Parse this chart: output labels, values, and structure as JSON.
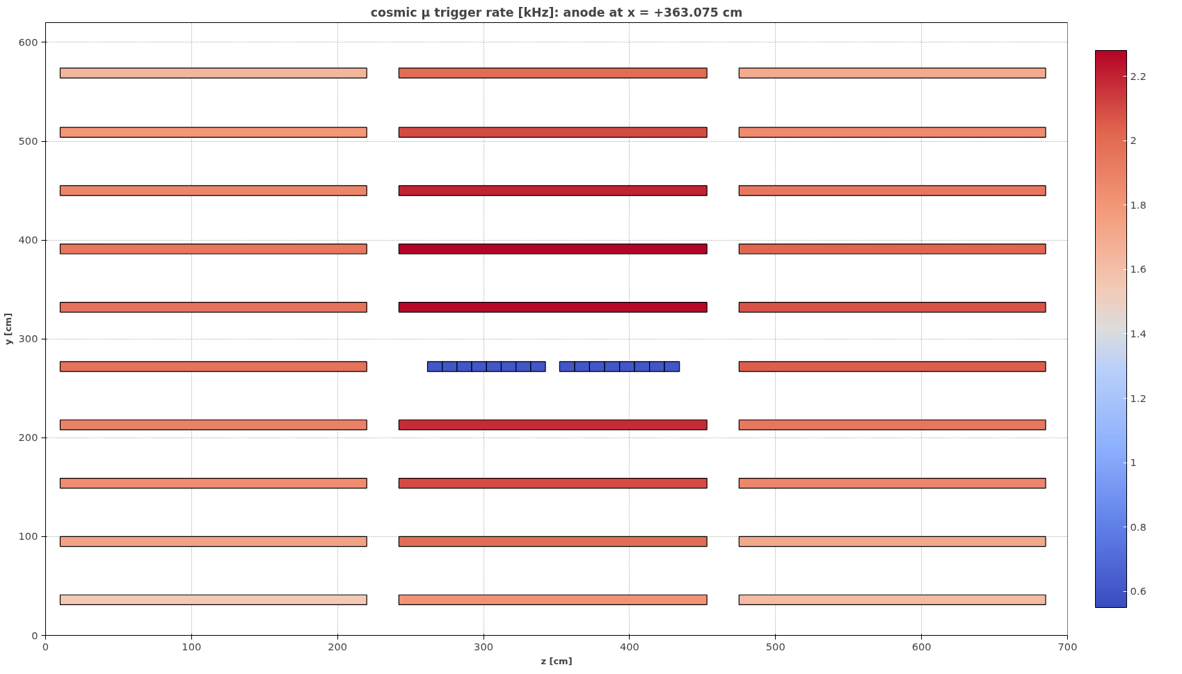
{
  "chart_data": {
    "type": "bar",
    "orientation": "horizontal",
    "title": "cosmic μ trigger rate [kHz]: anode at x = +363.075 cm",
    "xlabel": "z [cm]",
    "ylabel": "y [cm]",
    "xlim": [
      0,
      700
    ],
    "ylim": [
      0,
      620
    ],
    "xticks": [
      0,
      100,
      200,
      300,
      400,
      500,
      600,
      700
    ],
    "yticks": [
      0,
      100,
      200,
      300,
      400,
      500,
      600
    ],
    "clim": [
      0.55,
      2.28
    ],
    "cticks": [
      0.6,
      0.8,
      1.0,
      1.2,
      1.4,
      1.6,
      1.8,
      2.0,
      2.2
    ],
    "grid": true,
    "series": [
      {
        "x": [
          569,
          509,
          450,
          391,
          332,
          272,
          213,
          154,
          95,
          36
        ],
        "base": [
          10,
          10,
          10,
          10,
          10,
          10,
          10,
          10,
          10,
          10
        ],
        "values": [
          210,
          210,
          210,
          210,
          210,
          210,
          210,
          210,
          210,
          210
        ],
        "colors": [
          "#f3b59c",
          "#f39778",
          "#ec866a",
          "#e7775e",
          "#e5725b",
          "#e5725b",
          "#eb8267",
          "#ef8c70",
          "#f4a183",
          "#f2c9b4"
        ]
      },
      {
        "x": [
          569,
          509,
          450,
          391,
          332,
          213,
          154,
          95,
          36
        ],
        "base": [
          242,
          242,
          242,
          242,
          242,
          242,
          242,
          242,
          242
        ],
        "values": [
          211,
          211,
          211,
          211,
          211,
          211,
          211,
          211,
          211
        ],
        "colors": [
          "#e36c55",
          "#d44b44",
          "#c22334",
          "#b40426",
          "#b60828",
          "#c62c37",
          "#d44b44",
          "#e36c55",
          "#f19375"
        ]
      },
      {
        "x": [
          569,
          509,
          450,
          391,
          332,
          272,
          213,
          154,
          95,
          36
        ],
        "base": [
          475,
          475,
          475,
          475,
          475,
          475,
          475,
          475,
          475,
          475
        ],
        "values": [
          210,
          210,
          210,
          210,
          210,
          210,
          210,
          210,
          210,
          210
        ],
        "colors": [
          "#f3ab90",
          "#ef8c70",
          "#e7775e",
          "#e06650",
          "#d85347",
          "#dd5e4c",
          "#e7775e",
          "#ec866a",
          "#f3a78b",
          "#f3bba3"
        ]
      },
      {
        "x": [
          272
        ],
        "base": [
          261.6
        ],
        "values": [
          10.1
        ],
        "color": "#4256c8"
      },
      {
        "x": [
          272
        ],
        "base": [
          271.7
        ],
        "values": [
          10.1
        ],
        "color": "#4256c8"
      },
      {
        "x": [
          272
        ],
        "base": [
          281.8
        ],
        "values": [
          10.1
        ],
        "color": "#4256c8"
      },
      {
        "x": [
          272
        ],
        "base": [
          291.9
        ],
        "values": [
          10.1
        ],
        "color": "#4256c8"
      },
      {
        "x": [
          272
        ],
        "base": [
          302.0
        ],
        "values": [
          10.1
        ],
        "color": "#4256c8"
      },
      {
        "x": [
          272
        ],
        "base": [
          312.1
        ],
        "values": [
          10.1
        ],
        "color": "#4256c8"
      },
      {
        "x": [
          272
        ],
        "base": [
          322.2
        ],
        "values": [
          10.1
        ],
        "color": "#4256c8"
      },
      {
        "x": [
          272
        ],
        "base": [
          332.3
        ],
        "values": [
          10.1
        ],
        "color": "#4256c8"
      },
      {
        "x": [
          272
        ],
        "base": [
          352.1
        ],
        "values": [
          10.3
        ],
        "color": "#4256c8"
      },
      {
        "x": [
          272
        ],
        "base": [
          362.4
        ],
        "values": [
          10.2
        ],
        "color": "#4256c8"
      },
      {
        "x": [
          272
        ],
        "base": [
          372.6
        ],
        "values": [
          10.3
        ],
        "color": "#4256c8"
      },
      {
        "x": [
          272
        ],
        "base": [
          382.9
        ],
        "values": [
          10.3
        ],
        "color": "#4256c8"
      },
      {
        "x": [
          272
        ],
        "base": [
          393.2
        ],
        "values": [
          10.2
        ],
        "color": "#4256c8"
      },
      {
        "x": [
          272
        ],
        "base": [
          403.4
        ],
        "values": [
          10.3
        ],
        "color": "#4256c8"
      },
      {
        "x": [
          272
        ],
        "base": [
          413.7
        ],
        "values": [
          10.2
        ],
        "color": "#4256c8"
      },
      {
        "x": [
          272
        ],
        "base": [
          423.9
        ],
        "values": [
          10.3
        ],
        "color": "#4256c8"
      }
    ]
  }
}
